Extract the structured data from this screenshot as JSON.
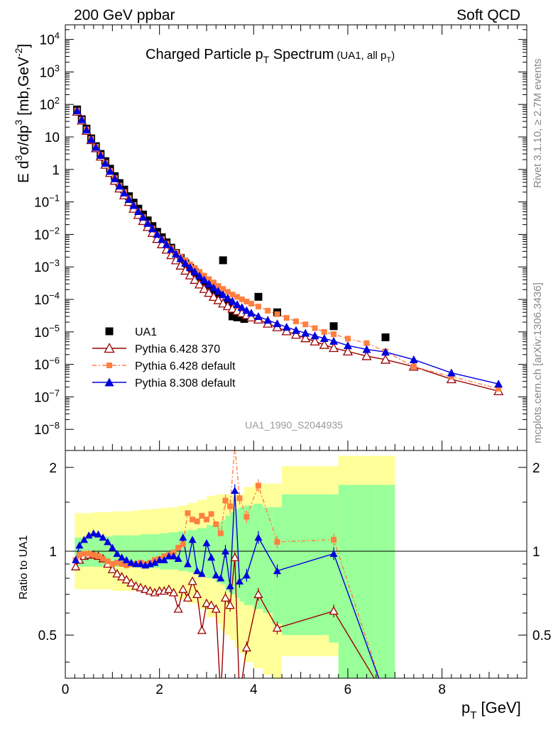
{
  "header": {
    "left": "200 GeV ppbar",
    "right": "Soft QCD"
  },
  "side": {
    "rivet": "Rivet 3.1.10, ≥ 2.7M events",
    "mcplots": "mcplots.cern.ch [arXiv:1306.3436]"
  },
  "main_title": {
    "text": "Charged Particle p",
    "sub": "T",
    "tail": " Spectrum",
    "small": "(UA1, all p",
    "small_sub": "T",
    "small_tail": ")"
  },
  "watermark": "UA1_1990_S2044935",
  "ylabel_top": {
    "a": "E d",
    "a_sup": "3",
    "b": "σ/dp",
    "b_sup": "3",
    "c": " [mb,GeV",
    "c_sup": "-2",
    "d": "]"
  },
  "ylabel_bottom": "Ratio to UA1",
  "xlabel": {
    "p": "p",
    "sub": "T",
    "unit": " [GeV]"
  },
  "top_ticks": [
    {
      "v": 4,
      "base": "10",
      "exp": "4"
    },
    {
      "v": 3,
      "base": "10",
      "exp": "3"
    },
    {
      "v": 2,
      "base": "10",
      "exp": "2"
    },
    {
      "v": 1,
      "base": "10",
      "exp": ""
    },
    {
      "v": 0,
      "base": "1",
      "exp": ""
    },
    {
      "v": -1,
      "base": "10",
      "exp": "−1"
    },
    {
      "v": -2,
      "base": "10",
      "exp": "−2"
    },
    {
      "v": -3,
      "base": "10",
      "exp": "−3"
    },
    {
      "v": -4,
      "base": "10",
      "exp": "−4"
    },
    {
      "v": -5,
      "base": "10",
      "exp": "−5"
    },
    {
      "v": -6,
      "base": "10",
      "exp": "−6"
    },
    {
      "v": -7,
      "base": "10",
      "exp": "−7"
    },
    {
      "v": -8,
      "base": "10",
      "exp": "−8"
    }
  ],
  "x_ticks": [
    "0",
    "2",
    "4",
    "6",
    "8"
  ],
  "ratio_ticks": [
    "2",
    "1",
    "0.5"
  ],
  "colors": {
    "ua1": "#000000",
    "py6_370": "#990000",
    "py6_def": "#ff8040",
    "py8": "#0000dd",
    "band_inner": "#99ff99",
    "band_outer": "#ffff99"
  },
  "chart_data": {
    "type": "scatter",
    "x_range": [
      0,
      9.8
    ],
    "y_log_range": [
      -8.65,
      4.45
    ],
    "ratio_range": [
      0.35,
      2.3
    ],
    "ratio_scale": "log",
    "legend_position": "lower-left",
    "series": [
      {
        "name": "UA1",
        "marker": "square",
        "x": [
          0.25,
          0.35,
          0.45,
          0.55,
          0.65,
          0.75,
          0.85,
          0.95,
          1.05,
          1.15,
          1.25,
          1.35,
          1.45,
          1.55,
          1.65,
          1.75,
          1.85,
          1.95,
          2.05,
          2.15,
          2.25,
          2.35,
          2.45,
          2.55,
          2.65,
          2.75,
          2.85,
          2.95,
          3.05,
          3.15,
          3.25,
          3.35,
          3.45,
          3.55,
          3.65,
          3.8,
          4.1,
          4.5,
          5.7,
          6.8
        ],
        "y": [
          70,
          35,
          18,
          9,
          5.2,
          3,
          1.8,
          1.05,
          0.62,
          0.38,
          0.24,
          0.15,
          0.095,
          0.062,
          0.041,
          0.027,
          0.018,
          0.012,
          0.0082,
          0.0057,
          0.0039,
          0.0027,
          0.0019,
          0.0013,
          0.00095,
          0.00068,
          0.0005,
          0.00036,
          0.00027,
          0.0002,
          0.00015,
          0.0016,
          8e-05,
          3e-05,
          2.8e-05,
          2.5e-05,
          0.00012,
          4e-05,
          1.5e-05,
          6.8e-06
        ]
      },
      {
        "name": "Pythia 6.428 370",
        "marker": "open-triangle",
        "x": [
          0.25,
          0.35,
          0.45,
          0.55,
          0.65,
          0.75,
          0.85,
          0.95,
          1.05,
          1.15,
          1.25,
          1.35,
          1.45,
          1.55,
          1.65,
          1.75,
          1.85,
          1.95,
          2.05,
          2.15,
          2.25,
          2.35,
          2.45,
          2.55,
          2.65,
          2.75,
          2.85,
          2.95,
          3.05,
          3.15,
          3.25,
          3.35,
          3.45,
          3.55,
          3.65,
          3.75,
          3.85,
          3.95,
          4.1,
          4.3,
          4.5,
          4.7,
          4.9,
          5.1,
          5.3,
          5.5,
          5.7,
          6.0,
          6.4,
          6.8,
          7.4,
          8.2,
          9.2
        ],
        "y": [
          60,
          32,
          15.5,
          8,
          4.5,
          2.5,
          1.4,
          0.78,
          0.45,
          0.26,
          0.16,
          0.1,
          0.062,
          0.04,
          0.026,
          0.017,
          0.0112,
          0.0073,
          0.005,
          0.0034,
          0.0023,
          0.0016,
          0.0011,
          0.00077,
          0.00055,
          0.0004,
          0.00029,
          0.00021,
          0.00016,
          0.00012,
          9.5e-05,
          7.5e-05,
          6.2e-05,
          5.2e-05,
          4.4e-05,
          3.8e-05,
          3.3e-05,
          2.8e-05,
          2.4e-05,
          1.8e-05,
          1.4e-05,
          1.05e-05,
          8.2e-06,
          6.4e-06,
          5.1e-06,
          4e-06,
          3.2e-06,
          2.5e-06,
          1.8e-06,
          1.4e-06,
          8.5e-07,
          3.5e-07,
          1.5e-07
        ],
        "ratio_x": [
          0.22,
          0.3,
          0.4,
          0.5,
          0.6,
          0.7,
          0.8,
          0.9,
          1.0,
          1.1,
          1.2,
          1.3,
          1.4,
          1.5,
          1.6,
          1.7,
          1.8,
          1.9,
          2.0,
          2.1,
          2.2,
          2.3,
          2.4,
          2.5,
          2.6,
          2.7,
          2.8,
          2.9,
          3.0,
          3.1,
          3.2,
          3.3,
          3.4,
          3.5,
          3.6,
          3.7,
          3.85,
          4.1,
          4.5,
          5.7,
          6.8
        ],
        "ratio": [
          0.88,
          0.93,
          0.96,
          0.97,
          0.97,
          0.96,
          0.94,
          0.9,
          0.86,
          0.83,
          0.81,
          0.79,
          0.77,
          0.75,
          0.74,
          0.73,
          0.72,
          0.71,
          0.72,
          0.72,
          0.73,
          0.71,
          0.62,
          0.73,
          0.68,
          0.78,
          0.7,
          0.52,
          0.65,
          0.64,
          0.62,
          0.3,
          0.68,
          0.64,
          0.95,
          0.3,
          0.45,
          0.7,
          0.53,
          0.61,
          0.3
        ]
      },
      {
        "name": "Pythia 6.428 default",
        "marker": "filled-square",
        "x": [
          0.25,
          0.35,
          0.45,
          0.55,
          0.65,
          0.75,
          0.85,
          0.95,
          1.05,
          1.15,
          1.25,
          1.35,
          1.45,
          1.55,
          1.65,
          1.75,
          1.85,
          1.95,
          2.05,
          2.15,
          2.25,
          2.35,
          2.45,
          2.55,
          2.65,
          2.75,
          2.85,
          2.95,
          3.05,
          3.15,
          3.25,
          3.35,
          3.45,
          3.55,
          3.65,
          3.75,
          3.85,
          3.95,
          4.1,
          4.3,
          4.5,
          4.7,
          4.9,
          5.1,
          5.3,
          5.5,
          5.7,
          6.0,
          6.4,
          6.8,
          7.4,
          8.2,
          9.2
        ],
        "y": [
          65,
          34,
          17,
          8.6,
          5,
          2.8,
          1.6,
          0.9,
          0.54,
          0.32,
          0.2,
          0.13,
          0.08,
          0.052,
          0.034,
          0.022,
          0.015,
          0.01,
          0.0072,
          0.0052,
          0.0038,
          0.0028,
          0.0021,
          0.0016,
          0.0012,
          0.00092,
          0.0007,
          0.00054,
          0.00042,
          0.00033,
          0.00026,
          0.00021,
          0.00017,
          0.00014,
          0.00012,
          0.0001,
          8.6e-05,
          7.4e-05,
          6e-05,
          4.5e-05,
          3.5e-05,
          2.7e-05,
          2.1e-05,
          1.7e-05,
          1.3e-05,
          1e-05,
          8.5e-06,
          6.2e-06,
          4.5e-06,
          2.5e-06,
          8.5e-07,
          4.2e-07,
          1.8e-07
        ],
        "ratio_x": [
          0.22,
          0.3,
          0.4,
          0.5,
          0.6,
          0.7,
          0.8,
          0.9,
          1.0,
          1.1,
          1.2,
          1.3,
          1.4,
          1.5,
          1.6,
          1.7,
          1.8,
          1.9,
          2.0,
          2.1,
          2.2,
          2.3,
          2.4,
          2.5,
          2.6,
          2.7,
          2.8,
          2.9,
          3.0,
          3.1,
          3.2,
          3.3,
          3.4,
          3.5,
          3.6,
          3.7,
          3.85,
          4.1,
          4.5,
          5.7,
          6.8
        ],
        "ratio": [
          0.93,
          0.97,
          0.98,
          0.98,
          0.97,
          0.96,
          0.94,
          0.92,
          0.9,
          0.91,
          0.9,
          0.89,
          0.9,
          0.9,
          0.91,
          0.9,
          0.91,
          0.93,
          0.94,
          0.96,
          0.97,
          0.99,
          1.03,
          1.06,
          1.37,
          1.3,
          1.28,
          1.34,
          1.3,
          1.36,
          1.25,
          1.16,
          1.52,
          1.45,
          2.4,
          1.55,
          1.33,
          1.72,
          1.08,
          1.1,
          0.3
        ]
      },
      {
        "name": "Pythia 8.308 default",
        "marker": "filled-triangle",
        "x": [
          0.25,
          0.35,
          0.45,
          0.55,
          0.65,
          0.75,
          0.85,
          0.95,
          1.05,
          1.15,
          1.25,
          1.35,
          1.45,
          1.55,
          1.65,
          1.75,
          1.85,
          1.95,
          2.05,
          2.15,
          2.25,
          2.35,
          2.45,
          2.55,
          2.65,
          2.75,
          2.85,
          2.95,
          3.05,
          3.15,
          3.25,
          3.35,
          3.45,
          3.55,
          3.65,
          3.75,
          3.85,
          3.95,
          4.1,
          4.3,
          4.5,
          4.7,
          4.9,
          5.1,
          5.3,
          5.5,
          5.7,
          6.0,
          6.4,
          6.8,
          7.4,
          8.2,
          9.2
        ],
        "y": [
          64,
          34,
          16.5,
          8.4,
          4.8,
          2.7,
          1.55,
          0.88,
          0.52,
          0.31,
          0.19,
          0.12,
          0.078,
          0.051,
          0.034,
          0.022,
          0.015,
          0.0101,
          0.007,
          0.0049,
          0.0035,
          0.0025,
          0.0018,
          0.0013,
          0.00096,
          0.00071,
          0.00053,
          0.0004,
          0.0003,
          0.00023,
          0.00018,
          0.00014,
          0.00011,
          8.8e-05,
          7e-05,
          5.7e-05,
          4.6e-05,
          3.8e-05,
          3e-05,
          2.3e-05,
          1.8e-05,
          1.4e-05,
          1.12e-05,
          9.2e-06,
          7.6e-06,
          6.3e-06,
          5.2e-06,
          3.8e-06,
          2.9e-06,
          2.4e-06,
          1.4e-06,
          5.5e-07,
          2.5e-07
        ],
        "ratio_x": [
          0.22,
          0.3,
          0.4,
          0.5,
          0.6,
          0.7,
          0.8,
          0.9,
          1.0,
          1.1,
          1.2,
          1.3,
          1.4,
          1.5,
          1.6,
          1.7,
          1.8,
          1.9,
          2.0,
          2.1,
          2.2,
          2.3,
          2.4,
          2.5,
          2.6,
          2.7,
          2.8,
          2.9,
          3.0,
          3.1,
          3.2,
          3.3,
          3.4,
          3.5,
          3.6,
          3.7,
          3.85,
          4.1,
          4.5,
          5.7,
          6.8
        ],
        "ratio": [
          0.93,
          1.05,
          1.1,
          1.14,
          1.16,
          1.15,
          1.12,
          1.08,
          1.03,
          0.98,
          0.95,
          0.93,
          0.91,
          0.9,
          0.9,
          0.89,
          0.9,
          0.91,
          0.93,
          0.93,
          0.96,
          0.96,
          0.94,
          1.12,
          0.9,
          1.1,
          0.85,
          0.83,
          1.07,
          0.95,
          0.82,
          0.8,
          1.0,
          0.75,
          1.65,
          0.78,
          0.82,
          1.12,
          0.85,
          0.98,
          0.3
        ]
      }
    ],
    "ratio_bands": {
      "edges": [
        0.2,
        0.4,
        0.6,
        0.8,
        1.0,
        1.2,
        1.4,
        1.6,
        1.8,
        2.0,
        2.2,
        2.4,
        2.6,
        2.8,
        3.0,
        3.2,
        3.3,
        3.4,
        3.5,
        3.6,
        3.7,
        3.8,
        4.0,
        4.2,
        4.4,
        4.6,
        5.6,
        5.8,
        6.6,
        7.0
      ],
      "inner": [
        [
          0.88,
          1.12
        ],
        [
          0.88,
          1.12
        ],
        [
          0.88,
          1.13
        ],
        [
          0.88,
          1.13
        ],
        [
          0.88,
          1.14
        ],
        [
          0.88,
          1.14
        ],
        [
          0.88,
          1.14
        ],
        [
          0.87,
          1.15
        ],
        [
          0.87,
          1.15
        ],
        [
          0.86,
          1.16
        ],
        [
          0.86,
          1.17
        ],
        [
          0.85,
          1.18
        ],
        [
          0.84,
          1.19
        ],
        [
          0.82,
          1.21
        ],
        [
          0.8,
          1.24
        ],
        [
          0.77,
          1.27
        ],
        [
          0.76,
          1.29
        ],
        [
          0.72,
          1.34
        ],
        [
          0.7,
          1.38
        ],
        [
          0.68,
          1.42
        ],
        [
          0.66,
          1.44
        ],
        [
          0.64,
          1.46
        ],
        [
          0.62,
          1.48
        ],
        [
          0.6,
          1.44
        ],
        [
          0.55,
          1.44
        ],
        [
          0.5,
          1.6
        ],
        [
          0.47,
          1.6
        ],
        [
          0.3,
          1.73
        ],
        [
          0.3,
          1.73
        ]
      ],
      "outer": [
        [
          0.73,
          1.37
        ],
        [
          0.73,
          1.37
        ],
        [
          0.73,
          1.38
        ],
        [
          0.73,
          1.38
        ],
        [
          0.72,
          1.39
        ],
        [
          0.72,
          1.39
        ],
        [
          0.72,
          1.4
        ],
        [
          0.71,
          1.41
        ],
        [
          0.71,
          1.42
        ],
        [
          0.7,
          1.43
        ],
        [
          0.69,
          1.44
        ],
        [
          0.67,
          1.46
        ],
        [
          0.65,
          1.49
        ],
        [
          0.62,
          1.53
        ],
        [
          0.58,
          1.58
        ],
        [
          0.55,
          1.6
        ],
        [
          0.52,
          1.6
        ],
        [
          0.5,
          1.6
        ],
        [
          0.48,
          1.6
        ],
        [
          0.45,
          1.6
        ],
        [
          0.43,
          1.6
        ],
        [
          0.4,
          1.7
        ],
        [
          0.38,
          1.75
        ],
        [
          0.36,
          1.75
        ],
        [
          0.35,
          1.75
        ],
        [
          0.42,
          2.02
        ],
        [
          0.42,
          2.02
        ],
        [
          0.3,
          2.2
        ],
        [
          0.3,
          2.2
        ]
      ]
    }
  }
}
